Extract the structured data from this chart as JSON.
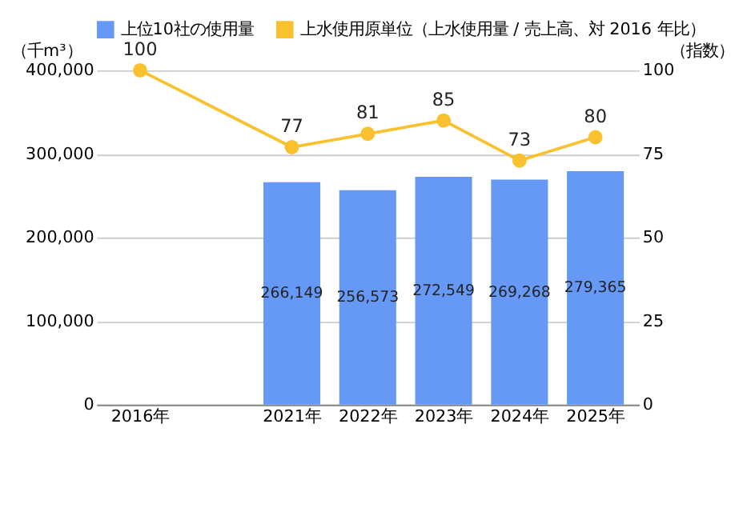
{
  "chart_data": {
    "type": "bar",
    "categories": [
      "2016年",
      null,
      "2021年",
      "2022年",
      "2023年",
      "2024年",
      "2025年"
    ],
    "ylabel": "（千m³）",
    "y2label": "（指数）",
    "ylim": [
      0,
      400000
    ],
    "yticks": [
      0,
      {
        "value": 100000,
        "label": "100,000"
      },
      {
        "value": 200000,
        "label": "200,000"
      },
      {
        "value": 300000,
        "label": "300,000"
      },
      {
        "value": 400000,
        "label": "400,000"
      }
    ],
    "y2lim": [
      0,
      100
    ],
    "y2ticks": [
      0,
      25,
      50,
      75,
      100
    ],
    "series": [
      {
        "name": "上位10社の使用量",
        "color": "#6699f5",
        "values": [
          null,
          null,
          266149,
          256573,
          272549,
          269268,
          279365
        ],
        "value_labels": [
          null,
          null,
          "266,149",
          "256,573",
          "272,549",
          "269,268",
          "279,365"
        ]
      },
      {
        "name": "上水使用原単位（上水使用量 / 売上高、対 2016 年比）",
        "type": "line",
        "axis": "y2",
        "color": "#f8c12d",
        "marker": "circle",
        "values": [
          100,
          null,
          77,
          81,
          85,
          73,
          80
        ],
        "value_labels": [
          "100",
          null,
          "77",
          "81",
          "85",
          "73",
          "80"
        ]
      }
    ],
    "grid": "y",
    "legend": "top"
  }
}
